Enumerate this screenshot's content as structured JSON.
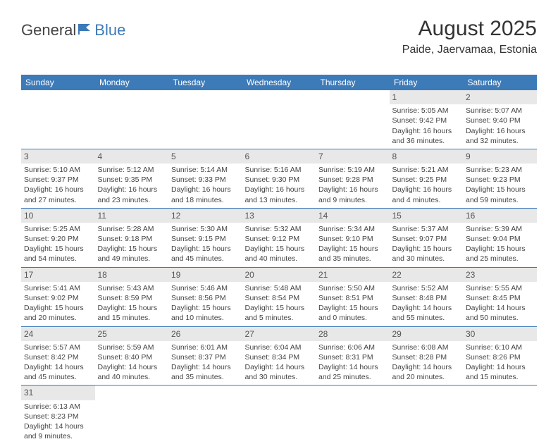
{
  "logo": {
    "text1": "General",
    "text2": "Blue"
  },
  "title": "August 2025",
  "location": "Paide, Jaervamaa, Estonia",
  "colors": {
    "header_bg": "#3d7ab8",
    "header_text": "#ffffff",
    "daynum_bg": "#e8e8e8",
    "border": "#3d7ab8",
    "body_text": "#444444",
    "page_bg": "#ffffff"
  },
  "dayHeaders": [
    "Sunday",
    "Monday",
    "Tuesday",
    "Wednesday",
    "Thursday",
    "Friday",
    "Saturday"
  ],
  "weeks": [
    [
      null,
      null,
      null,
      null,
      null,
      {
        "n": "1",
        "sr": "Sunrise: 5:05 AM",
        "ss": "Sunset: 9:42 PM",
        "dl1": "Daylight: 16 hours",
        "dl2": "and 36 minutes."
      },
      {
        "n": "2",
        "sr": "Sunrise: 5:07 AM",
        "ss": "Sunset: 9:40 PM",
        "dl1": "Daylight: 16 hours",
        "dl2": "and 32 minutes."
      }
    ],
    [
      {
        "n": "3",
        "sr": "Sunrise: 5:10 AM",
        "ss": "Sunset: 9:37 PM",
        "dl1": "Daylight: 16 hours",
        "dl2": "and 27 minutes."
      },
      {
        "n": "4",
        "sr": "Sunrise: 5:12 AM",
        "ss": "Sunset: 9:35 PM",
        "dl1": "Daylight: 16 hours",
        "dl2": "and 23 minutes."
      },
      {
        "n": "5",
        "sr": "Sunrise: 5:14 AM",
        "ss": "Sunset: 9:33 PM",
        "dl1": "Daylight: 16 hours",
        "dl2": "and 18 minutes."
      },
      {
        "n": "6",
        "sr": "Sunrise: 5:16 AM",
        "ss": "Sunset: 9:30 PM",
        "dl1": "Daylight: 16 hours",
        "dl2": "and 13 minutes."
      },
      {
        "n": "7",
        "sr": "Sunrise: 5:19 AM",
        "ss": "Sunset: 9:28 PM",
        "dl1": "Daylight: 16 hours",
        "dl2": "and 9 minutes."
      },
      {
        "n": "8",
        "sr": "Sunrise: 5:21 AM",
        "ss": "Sunset: 9:25 PM",
        "dl1": "Daylight: 16 hours",
        "dl2": "and 4 minutes."
      },
      {
        "n": "9",
        "sr": "Sunrise: 5:23 AM",
        "ss": "Sunset: 9:23 PM",
        "dl1": "Daylight: 15 hours",
        "dl2": "and 59 minutes."
      }
    ],
    [
      {
        "n": "10",
        "sr": "Sunrise: 5:25 AM",
        "ss": "Sunset: 9:20 PM",
        "dl1": "Daylight: 15 hours",
        "dl2": "and 54 minutes."
      },
      {
        "n": "11",
        "sr": "Sunrise: 5:28 AM",
        "ss": "Sunset: 9:18 PM",
        "dl1": "Daylight: 15 hours",
        "dl2": "and 49 minutes."
      },
      {
        "n": "12",
        "sr": "Sunrise: 5:30 AM",
        "ss": "Sunset: 9:15 PM",
        "dl1": "Daylight: 15 hours",
        "dl2": "and 45 minutes."
      },
      {
        "n": "13",
        "sr": "Sunrise: 5:32 AM",
        "ss": "Sunset: 9:12 PM",
        "dl1": "Daylight: 15 hours",
        "dl2": "and 40 minutes."
      },
      {
        "n": "14",
        "sr": "Sunrise: 5:34 AM",
        "ss": "Sunset: 9:10 PM",
        "dl1": "Daylight: 15 hours",
        "dl2": "and 35 minutes."
      },
      {
        "n": "15",
        "sr": "Sunrise: 5:37 AM",
        "ss": "Sunset: 9:07 PM",
        "dl1": "Daylight: 15 hours",
        "dl2": "and 30 minutes."
      },
      {
        "n": "16",
        "sr": "Sunrise: 5:39 AM",
        "ss": "Sunset: 9:04 PM",
        "dl1": "Daylight: 15 hours",
        "dl2": "and 25 minutes."
      }
    ],
    [
      {
        "n": "17",
        "sr": "Sunrise: 5:41 AM",
        "ss": "Sunset: 9:02 PM",
        "dl1": "Daylight: 15 hours",
        "dl2": "and 20 minutes."
      },
      {
        "n": "18",
        "sr": "Sunrise: 5:43 AM",
        "ss": "Sunset: 8:59 PM",
        "dl1": "Daylight: 15 hours",
        "dl2": "and 15 minutes."
      },
      {
        "n": "19",
        "sr": "Sunrise: 5:46 AM",
        "ss": "Sunset: 8:56 PM",
        "dl1": "Daylight: 15 hours",
        "dl2": "and 10 minutes."
      },
      {
        "n": "20",
        "sr": "Sunrise: 5:48 AM",
        "ss": "Sunset: 8:54 PM",
        "dl1": "Daylight: 15 hours",
        "dl2": "and 5 minutes."
      },
      {
        "n": "21",
        "sr": "Sunrise: 5:50 AM",
        "ss": "Sunset: 8:51 PM",
        "dl1": "Daylight: 15 hours",
        "dl2": "and 0 minutes."
      },
      {
        "n": "22",
        "sr": "Sunrise: 5:52 AM",
        "ss": "Sunset: 8:48 PM",
        "dl1": "Daylight: 14 hours",
        "dl2": "and 55 minutes."
      },
      {
        "n": "23",
        "sr": "Sunrise: 5:55 AM",
        "ss": "Sunset: 8:45 PM",
        "dl1": "Daylight: 14 hours",
        "dl2": "and 50 minutes."
      }
    ],
    [
      {
        "n": "24",
        "sr": "Sunrise: 5:57 AM",
        "ss": "Sunset: 8:42 PM",
        "dl1": "Daylight: 14 hours",
        "dl2": "and 45 minutes."
      },
      {
        "n": "25",
        "sr": "Sunrise: 5:59 AM",
        "ss": "Sunset: 8:40 PM",
        "dl1": "Daylight: 14 hours",
        "dl2": "and 40 minutes."
      },
      {
        "n": "26",
        "sr": "Sunrise: 6:01 AM",
        "ss": "Sunset: 8:37 PM",
        "dl1": "Daylight: 14 hours",
        "dl2": "and 35 minutes."
      },
      {
        "n": "27",
        "sr": "Sunrise: 6:04 AM",
        "ss": "Sunset: 8:34 PM",
        "dl1": "Daylight: 14 hours",
        "dl2": "and 30 minutes."
      },
      {
        "n": "28",
        "sr": "Sunrise: 6:06 AM",
        "ss": "Sunset: 8:31 PM",
        "dl1": "Daylight: 14 hours",
        "dl2": "and 25 minutes."
      },
      {
        "n": "29",
        "sr": "Sunrise: 6:08 AM",
        "ss": "Sunset: 8:28 PM",
        "dl1": "Daylight: 14 hours",
        "dl2": "and 20 minutes."
      },
      {
        "n": "30",
        "sr": "Sunrise: 6:10 AM",
        "ss": "Sunset: 8:26 PM",
        "dl1": "Daylight: 14 hours",
        "dl2": "and 15 minutes."
      }
    ],
    [
      {
        "n": "31",
        "sr": "Sunrise: 6:13 AM",
        "ss": "Sunset: 8:23 PM",
        "dl1": "Daylight: 14 hours",
        "dl2": "and 9 minutes."
      },
      null,
      null,
      null,
      null,
      null,
      null
    ]
  ]
}
